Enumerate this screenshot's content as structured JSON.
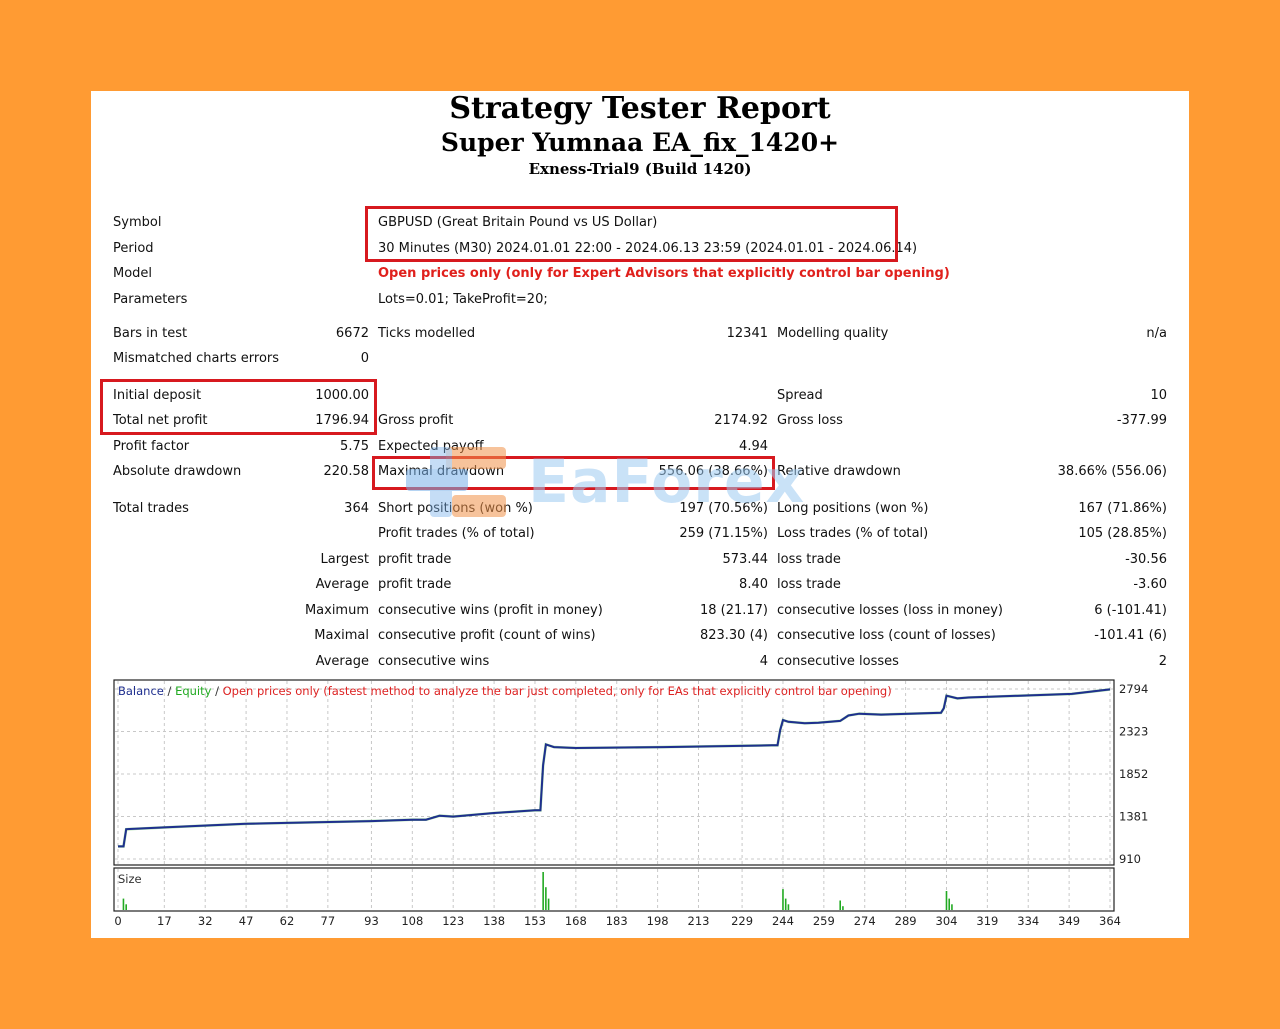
{
  "header": {
    "title": "Strategy Tester Report",
    "subtitle": "Super Yumnaa EA_fix_1420+",
    "server": "Exness-Trial9 (Build 1420)"
  },
  "settings": {
    "symbol_label": "Symbol",
    "symbol_value": "GBPUSD (Great Britain Pound vs US Dollar)",
    "period_label": "Period",
    "period_value": "30 Minutes (M30) 2024.01.01 22:00 - 2024.06.13 23:59 (2024.01.01 - 2024.06.14)",
    "model_label": "Model",
    "model_value": "Open prices only (only for Expert Advisors that explicitly control bar opening)",
    "parameters_label": "Parameters",
    "parameters_value": "Lots=0.01; TakeProfit=20;"
  },
  "stats": {
    "bars_label": "Bars in test",
    "bars_value": "6672",
    "ticks_label": "Ticks modelled",
    "ticks_value": "12341",
    "quality_label": "Modelling quality",
    "quality_value": "n/a",
    "mismatch_label": "Mismatched charts errors",
    "mismatch_value": "0",
    "deposit_label": "Initial deposit",
    "deposit_value": "1000.00",
    "spread_label": "Spread",
    "spread_value": "10",
    "netprofit_label": "Total net profit",
    "netprofit_value": "1796.94",
    "grossprofit_label": "Gross profit",
    "grossprofit_value": "2174.92",
    "grossloss_label": "Gross loss",
    "grossloss_value": "-377.99",
    "pf_label": "Profit factor",
    "pf_value": "5.75",
    "payoff_label": "Expected payoff",
    "payoff_value": "4.94",
    "absdd_label": "Absolute drawdown",
    "absdd_value": "220.58",
    "maxdd_label": "Maximal drawdown",
    "maxdd_value": "556.06 (38.66%)",
    "reldd_label": "Relative drawdown",
    "reldd_value": "38.66% (556.06)",
    "trades_label": "Total trades",
    "trades_value": "364",
    "short_label": "Short positions (won %)",
    "short_value": "197 (70.56%)",
    "long_label": "Long positions (won %)",
    "long_value": "167 (71.86%)",
    "profittrades_label": "Profit trades (% of total)",
    "profittrades_value": "259 (71.15%)",
    "losstrades_label": "Loss trades (% of total)",
    "losstrades_value": "105 (28.85%)",
    "largest_label": "Largest",
    "largest_profit_label": "profit trade",
    "largest_profit_value": "573.44",
    "largest_loss_label": "loss trade",
    "largest_loss_value": "-30.56",
    "average_label": "Average",
    "average_profit_label": "profit trade",
    "average_profit_value": "8.40",
    "average_loss_label": "loss trade",
    "average_loss_value": "-3.60",
    "maximum_label": "Maximum",
    "max_wins_label": "consecutive wins (profit in money)",
    "max_wins_value": "18 (21.17)",
    "max_losses_label": "consecutive losses (loss in money)",
    "max_losses_value": "6 (-101.41)",
    "maximal_label": "Maximal",
    "maximal_profit_label": "consecutive profit (count of wins)",
    "maximal_profit_value": "823.30 (4)",
    "maximal_loss_label": "consecutive loss (count of losses)",
    "maximal_loss_value": "-101.41 (6)",
    "avg_consec_label": "Average",
    "avg_consec_wins_label": "consecutive wins",
    "avg_consec_wins_value": "4",
    "avg_consec_losses_label": "consecutive losses",
    "avg_consec_losses_value": "2"
  },
  "watermark": {
    "text": "EaForex"
  },
  "chart_data": {
    "type": "line",
    "legend": [
      "Balance",
      "Equity",
      "Open prices only (fastest method to analyze the bar just completed, only for EAs that explicitly control bar opening)"
    ],
    "colors": {
      "balance": "#1f2f8f",
      "equity": "#22aa22",
      "legend_note": "#dd2222",
      "size_bars": "#22aa22",
      "grid": "#c8c8c8"
    },
    "ylim": [
      910,
      2794
    ],
    "y_ticks": [
      2794,
      2323,
      1852,
      1381,
      910
    ],
    "x_ticks": [
      0,
      17,
      32,
      47,
      62,
      77,
      93,
      108,
      123,
      138,
      153,
      168,
      183,
      198,
      213,
      229,
      244,
      259,
      274,
      289,
      304,
      319,
      334,
      349,
      364
    ],
    "xlim": [
      0,
      364
    ],
    "balance": {
      "x": [
        0,
        2,
        3,
        17,
        47,
        62,
        93,
        108,
        113,
        118,
        123,
        138,
        153,
        155,
        156,
        157,
        158,
        160,
        168,
        200,
        240,
        242,
        243,
        244,
        246,
        252,
        257,
        265,
        268,
        272,
        280,
        302,
        303,
        304,
        308,
        312,
        350,
        364
      ],
      "y": [
        1050,
        1050,
        1240,
        1260,
        1300,
        1310,
        1330,
        1345,
        1345,
        1390,
        1380,
        1420,
        1450,
        1450,
        1950,
        2180,
        2170,
        2150,
        2140,
        2150,
        2170,
        2170,
        2340,
        2450,
        2430,
        2415,
        2420,
        2440,
        2500,
        2520,
        2510,
        2530,
        2580,
        2720,
        2690,
        2700,
        2740,
        2790
      ]
    },
    "size_label": "Size",
    "size_bars": {
      "x": [
        2,
        3,
        156,
        157,
        158,
        244,
        245,
        246,
        265,
        266,
        304,
        305,
        306
      ],
      "h": [
        0.3,
        0.15,
        1.0,
        0.6,
        0.3,
        0.55,
        0.3,
        0.15,
        0.25,
        0.1,
        0.5,
        0.3,
        0.15
      ]
    }
  }
}
